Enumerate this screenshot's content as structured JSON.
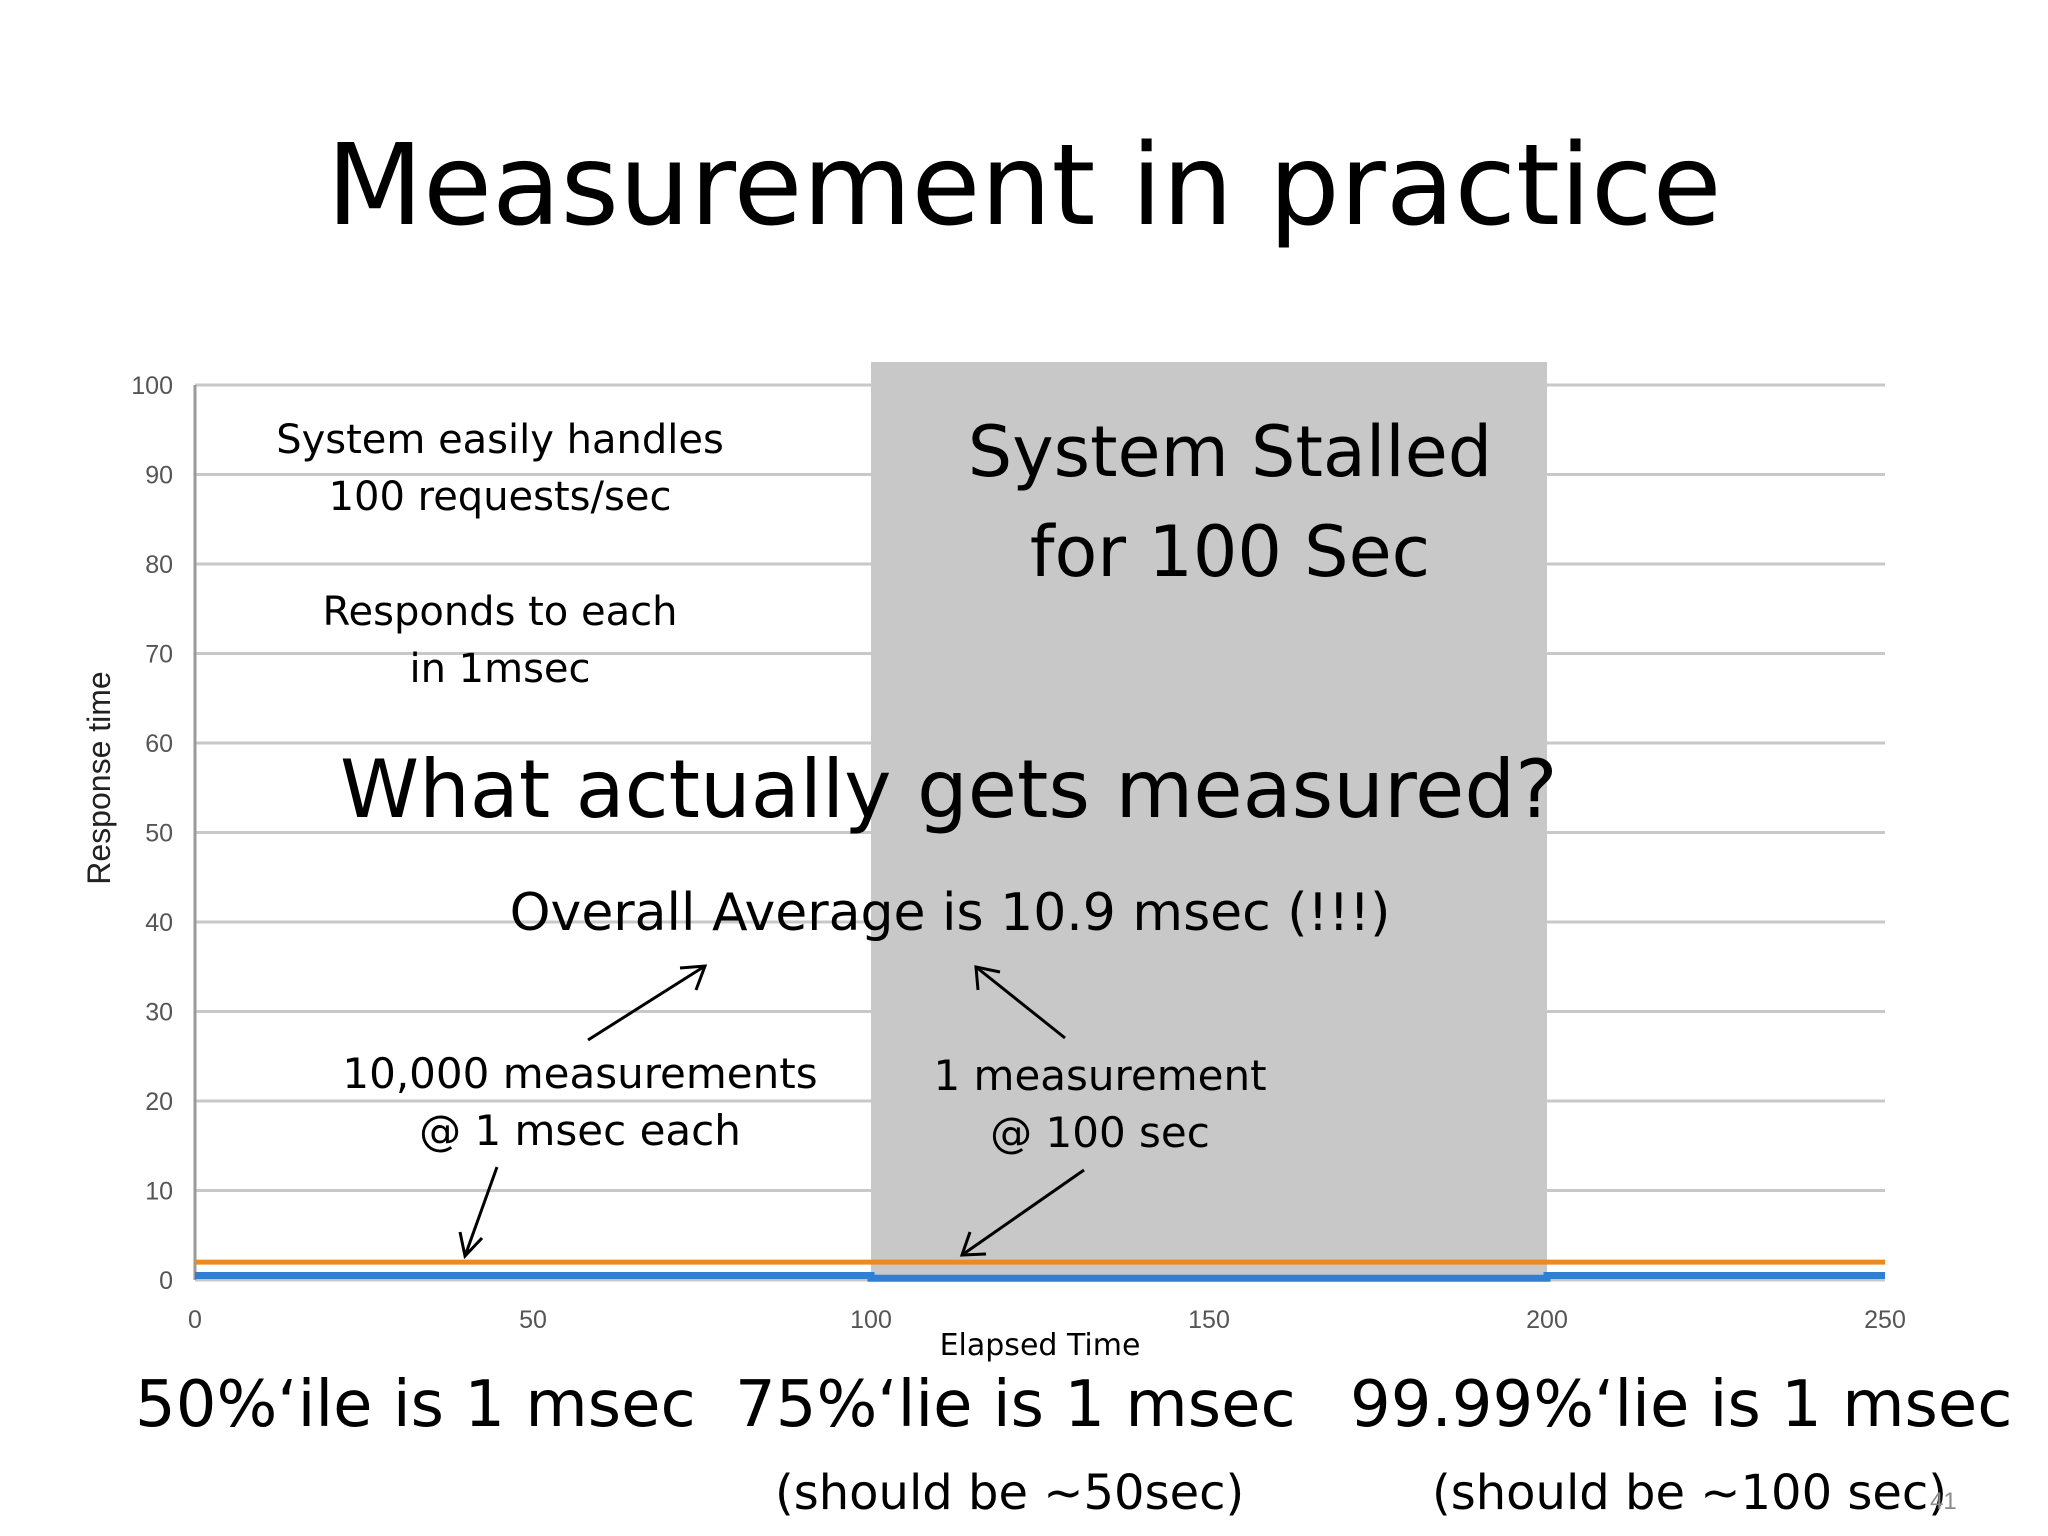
{
  "title": "Measurement in practice",
  "colors": {
    "stall_band": "#c8c8c8",
    "average_line": "#f0891a",
    "measurement_line": "#2f7fd4",
    "gridline": "#c8c8c8",
    "note_red": "#e8501c"
  },
  "chart_data": {
    "type": "line",
    "xlabel": "Elapsed Time",
    "ylabel": "Response time",
    "xlim": [
      0,
      250
    ],
    "ylim": [
      0,
      100
    ],
    "xticks": [
      0,
      50,
      100,
      150,
      200,
      250
    ],
    "yticks": [
      0,
      10,
      20,
      30,
      40,
      50,
      60,
      70,
      80,
      90,
      100
    ],
    "grid": true,
    "highlight_band": {
      "x_start": 100,
      "x_end": 200,
      "label_lines": [
        "System Stalled",
        "for 100 Sec"
      ]
    },
    "series": [
      {
        "color": "#f0891a",
        "x": [
          0,
          250
        ],
        "y": [
          2,
          2
        ]
      },
      {
        "color": "#2f7fd4",
        "x": [
          0,
          100,
          100,
          200,
          200,
          250
        ],
        "y": [
          0.5,
          0.5,
          0.2,
          0.2,
          0.5,
          0.5
        ]
      }
    ]
  },
  "annotations": {
    "handles": [
      "System easily handles",
      "100 requests/sec"
    ],
    "responds": [
      "Responds to each",
      "in 1msec"
    ],
    "question": "What actually gets measured?",
    "average": "Overall Average is 10.9 msec (!!!)",
    "many": [
      "10,000 measurements",
      "@ 1 msec each"
    ],
    "one": [
      "1 measurement",
      "@ 100 sec"
    ]
  },
  "percentiles": [
    {
      "label": "50%‘ile is 1 msec",
      "note": ""
    },
    {
      "label": "75%‘lie is 1 msec",
      "note": "(should be ~50sec)"
    },
    {
      "label": "99.99%‘lie is 1 msec",
      "note": "(should be ~100 sec)"
    }
  ],
  "slide_number": "41"
}
